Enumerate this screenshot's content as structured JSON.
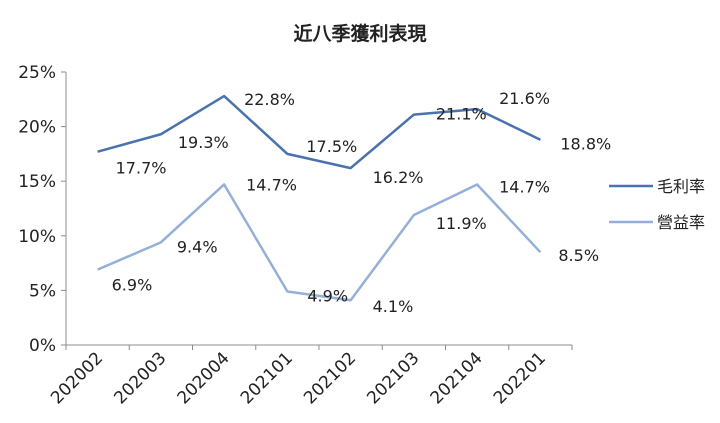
{
  "chart_data": {
    "type": "line",
    "title": "近八季獲利表現",
    "categories": [
      "202002",
      "202003",
      "202004",
      "202101",
      "202102",
      "202103",
      "202104",
      "202201"
    ],
    "series": [
      {
        "name": "毛利率",
        "values": [
          17.7,
          19.3,
          22.8,
          17.5,
          16.2,
          21.1,
          21.6,
          18.8
        ],
        "labels": [
          "17.7%",
          "19.3%",
          "22.8%",
          "17.5%",
          "16.2%",
          "21.1%",
          "21.6%",
          "18.8%"
        ],
        "color": "#4a72ad"
      },
      {
        "name": "營益率",
        "values": [
          6.9,
          9.4,
          14.7,
          4.9,
          4.1,
          11.9,
          14.7,
          8.5
        ],
        "labels": [
          "6.9%",
          "9.4%",
          "14.7%",
          "4.9%",
          "4.1%",
          "11.9%",
          "14.7%",
          "8.5%"
        ],
        "color": "#95b0d8"
      }
    ],
    "ylim": [
      0,
      25
    ],
    "yticks": [
      0,
      5,
      10,
      15,
      20,
      25
    ],
    "ytick_labels": [
      "0%",
      "5%",
      "10%",
      "15%",
      "20%",
      "25%"
    ],
    "grid": false,
    "legend": "right"
  }
}
